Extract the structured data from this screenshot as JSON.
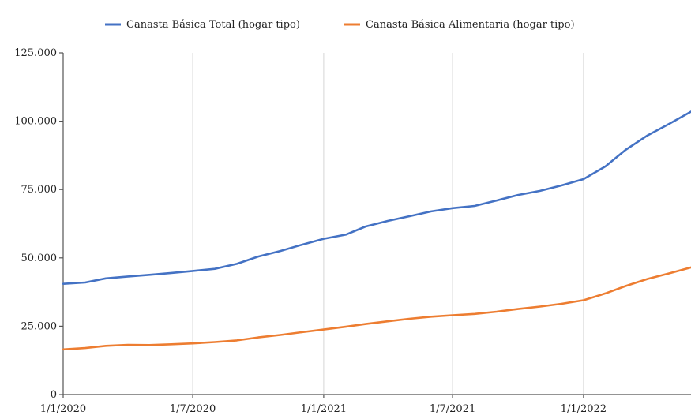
{
  "chart_data": {
    "type": "line",
    "x_type": "date",
    "x": [
      "2020-01-01",
      "2020-02-01",
      "2020-03-01",
      "2020-04-01",
      "2020-05-01",
      "2020-06-01",
      "2020-07-01",
      "2020-08-01",
      "2020-09-01",
      "2020-10-01",
      "2020-11-01",
      "2020-12-01",
      "2021-01-01",
      "2021-02-01",
      "2021-03-01",
      "2021-04-01",
      "2021-05-01",
      "2021-06-01",
      "2021-07-01",
      "2021-08-01",
      "2021-09-01",
      "2021-10-01",
      "2021-11-01",
      "2021-12-01",
      "2022-01-01",
      "2022-02-01",
      "2022-03-01",
      "2022-04-01",
      "2022-05-01",
      "2022-06-01"
    ],
    "series": [
      {
        "name": "Canasta Básica Total (hogar tipo)",
        "color": "#4472c4",
        "values": [
          40500,
          41000,
          42500,
          43200,
          43800,
          44500,
          45200,
          46000,
          47800,
          50500,
          52500,
          54800,
          57000,
          58500,
          61500,
          63500,
          65200,
          67000,
          68200,
          69000,
          71000,
          73000,
          74500,
          76500,
          78800,
          83500,
          89500,
          94800,
          99000,
          103500
        ]
      },
      {
        "name": "Canasta Básica Alimentaria (hogar tipo)",
        "color": "#ed7d31",
        "values": [
          16500,
          17000,
          17800,
          18200,
          18100,
          18400,
          18700,
          19200,
          19800,
          20900,
          21800,
          22800,
          23800,
          24800,
          25800,
          26800,
          27700,
          28500,
          29000,
          29500,
          30300,
          31300,
          32200,
          33200,
          34500,
          37000,
          39700,
          42300,
          44300,
          46500
        ]
      }
    ],
    "legend": "top",
    "ylim": [
      0,
      125000
    ],
    "y_ticks": [
      0,
      25000,
      50000,
      75000,
      100000,
      125000
    ],
    "y_tick_labels": [
      "0",
      "25.000",
      "50.000",
      "75.000",
      "100.000",
      "125.000"
    ],
    "x_ticks": [
      "2020-01-01",
      "2020-07-01",
      "2021-01-01",
      "2021-07-01",
      "2022-01-01"
    ],
    "x_tick_labels": [
      "1/1/2020",
      "1/7/2020",
      "1/1/2021",
      "1/7/2021",
      "1/1/2022"
    ],
    "grid": "vertical"
  }
}
